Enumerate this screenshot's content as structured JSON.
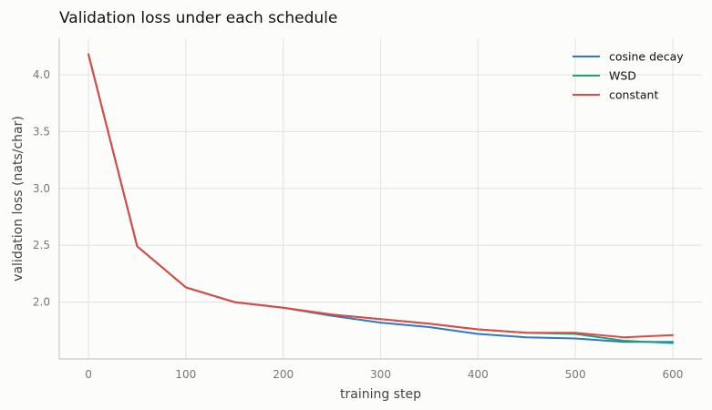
{
  "chart_data": {
    "type": "line",
    "title": "Validation loss under each schedule",
    "xlabel": "training step",
    "ylabel": "validation loss (nats/char)",
    "xlim": [
      -30,
      630
    ],
    "ylim": [
      1.5,
      4.32
    ],
    "x": [
      0,
      50,
      100,
      150,
      200,
      250,
      300,
      350,
      400,
      450,
      500,
      550,
      600
    ],
    "xticks": [
      0,
      100,
      200,
      300,
      400,
      500,
      600
    ],
    "yticks": [
      2.0,
      2.5,
      3.0,
      3.5,
      4.0
    ],
    "grid": true,
    "legend_position": "top-right",
    "series": [
      {
        "name": "cosine decay",
        "color": "#2f78c4",
        "values": [
          4.18,
          2.49,
          2.13,
          2.0,
          1.95,
          1.88,
          1.82,
          1.78,
          1.72,
          1.69,
          1.68,
          1.65,
          1.65
        ]
      },
      {
        "name": "WSD",
        "color": "#20a07a",
        "values": [
          4.18,
          2.49,
          2.13,
          2.0,
          1.95,
          1.89,
          1.85,
          1.81,
          1.76,
          1.73,
          1.72,
          1.66,
          1.64
        ]
      },
      {
        "name": "constant",
        "color": "#e04a42",
        "values": [
          4.18,
          2.49,
          2.13,
          2.0,
          1.95,
          1.89,
          1.85,
          1.81,
          1.76,
          1.73,
          1.73,
          1.69,
          1.71
        ]
      }
    ]
  }
}
